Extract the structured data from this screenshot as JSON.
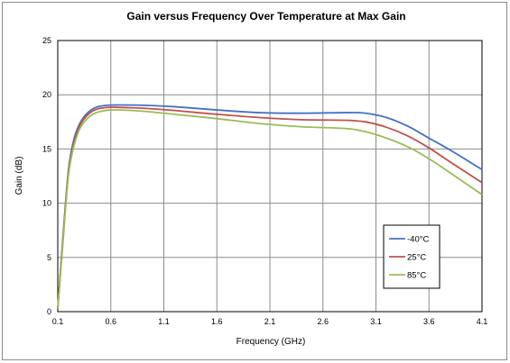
{
  "chart_data": {
    "type": "line",
    "title": "Gain versus Frequency Over Temperature at Max Gain",
    "xlabel": "Frequency (GHz)",
    "ylabel": "Gain (dB)",
    "xlim": [
      0.1,
      4.1
    ],
    "ylim": [
      0,
      25
    ],
    "xticks": [
      "0.1",
      "0.6",
      "1.1",
      "1.6",
      "2.1",
      "2.6",
      "3.1",
      "3.6",
      "4.1"
    ],
    "yticks": [
      "0",
      "5",
      "10",
      "15",
      "20",
      "25"
    ],
    "grid": true,
    "legend_position": "bottom-right",
    "series": [
      {
        "name": "-40°C",
        "color": "#4472c4",
        "x": [
          0.1,
          0.15,
          0.2,
          0.25,
          0.3,
          0.35,
          0.4,
          0.45,
          0.5,
          0.6,
          0.8,
          1.0,
          1.2,
          1.6,
          2.0,
          2.4,
          2.8,
          3.0,
          3.2,
          3.4,
          3.6,
          3.8,
          4.1
        ],
        "y": [
          0.3,
          7.0,
          13.0,
          15.8,
          17.2,
          18.0,
          18.5,
          18.8,
          18.95,
          19.05,
          19.05,
          19.0,
          18.9,
          18.6,
          18.35,
          18.3,
          18.35,
          18.3,
          17.9,
          17.1,
          16.0,
          14.9,
          13.1
        ]
      },
      {
        "name": "25°C",
        "color": "#c0504d",
        "x": [
          0.1,
          0.15,
          0.2,
          0.25,
          0.3,
          0.35,
          0.4,
          0.45,
          0.5,
          0.6,
          0.8,
          1.0,
          1.2,
          1.6,
          2.0,
          2.4,
          2.8,
          3.0,
          3.2,
          3.4,
          3.6,
          3.8,
          4.1
        ],
        "y": [
          0.3,
          6.8,
          12.8,
          15.5,
          17.0,
          17.8,
          18.3,
          18.6,
          18.75,
          18.85,
          18.8,
          18.7,
          18.55,
          18.2,
          17.9,
          17.7,
          17.65,
          17.5,
          17.0,
          16.2,
          15.1,
          13.8,
          11.9
        ]
      },
      {
        "name": "85°C",
        "color": "#9bbb59",
        "x": [
          0.1,
          0.15,
          0.2,
          0.25,
          0.3,
          0.35,
          0.4,
          0.45,
          0.5,
          0.6,
          0.8,
          1.0,
          1.2,
          1.6,
          2.0,
          2.4,
          2.8,
          3.0,
          3.2,
          3.4,
          3.6,
          3.8,
          4.1
        ],
        "y": [
          0.3,
          6.5,
          12.5,
          15.2,
          16.7,
          17.5,
          18.0,
          18.3,
          18.45,
          18.6,
          18.55,
          18.4,
          18.2,
          17.8,
          17.35,
          17.05,
          16.9,
          16.6,
          16.0,
          15.2,
          14.1,
          12.8,
          10.8
        ]
      }
    ]
  }
}
